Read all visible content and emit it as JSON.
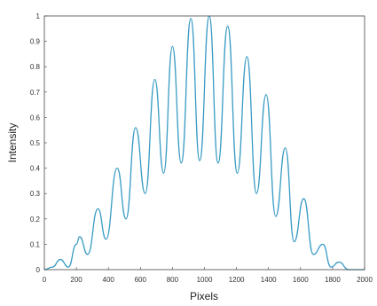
{
  "chart_data": {
    "type": "line",
    "title": "",
    "xlabel": "Pixels",
    "ylabel": "Intensity",
    "xlim": [
      0,
      2000
    ],
    "ylim": [
      0,
      1
    ],
    "x_ticks": [
      "0",
      "200",
      "400",
      "600",
      "800",
      "1000",
      "1200",
      "1400",
      "1600",
      "1800",
      "2000"
    ],
    "y_ticks": [
      "0",
      "0.1",
      "0.2",
      "0.3",
      "0.4",
      "0.5",
      "0.6",
      "0.7",
      "0.8",
      "0.9",
      "1"
    ],
    "grid": false,
    "colors": {
      "line": "#3a9cc4",
      "axes": "#444444",
      "background": "#ffffff"
    },
    "series": [
      {
        "x": [
          0,
          50,
          100,
          150,
          200,
          220,
          270,
          335,
          385,
          455,
          510,
          570,
          630,
          690,
          745,
          800,
          855,
          915,
          970,
          1030,
          1085,
          1145,
          1205,
          1265,
          1325,
          1385,
          1445,
          1505,
          1560,
          1620,
          1680,
          1740,
          1790,
          1840,
          1900,
          2000
        ],
        "y": [
          0.0,
          0.01,
          0.04,
          0.01,
          0.1,
          0.13,
          0.06,
          0.24,
          0.12,
          0.4,
          0.2,
          0.56,
          0.3,
          0.75,
          0.38,
          0.88,
          0.42,
          0.99,
          0.43,
          1.0,
          0.42,
          0.96,
          0.38,
          0.84,
          0.3,
          0.69,
          0.21,
          0.48,
          0.11,
          0.28,
          0.06,
          0.1,
          0.01,
          0.03,
          0.0,
          0.0
        ]
      }
    ]
  }
}
